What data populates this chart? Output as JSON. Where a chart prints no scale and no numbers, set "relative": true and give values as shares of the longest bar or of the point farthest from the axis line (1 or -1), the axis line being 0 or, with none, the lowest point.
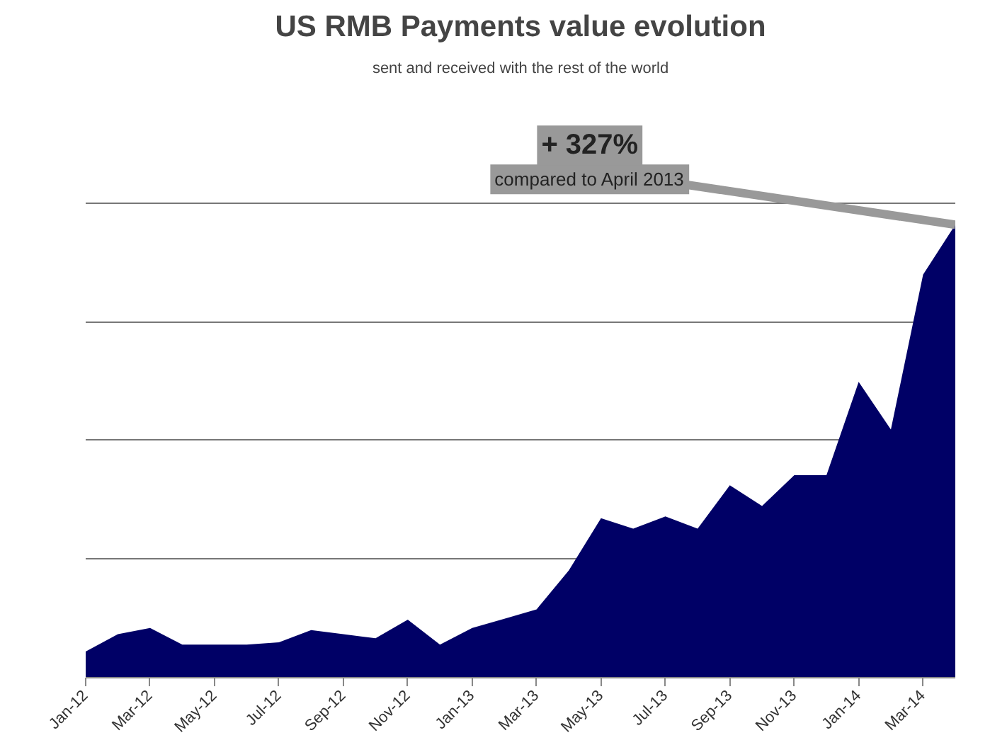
{
  "chart_data": {
    "type": "area",
    "title": "US RMB Payments value evolution",
    "subtitle": "sent and received with the rest of the world",
    "categories": [
      "Jan-12",
      null,
      "Mar-12",
      null,
      "May-12",
      null,
      "Jul-12",
      null,
      "Sep-12",
      null,
      "Nov-12",
      null,
      "Jan-13",
      null,
      "Mar-13",
      null,
      "May-13",
      null,
      "Jul-13",
      null,
      "Sep-13",
      null,
      "Nov-13",
      null,
      "Jan-14",
      null,
      "Mar-14",
      null
    ],
    "series": [
      {
        "color": "#000066",
        "values": [
          0.058,
          0.096,
          0.11,
          0.073,
          0.073,
          0.073,
          0.078,
          0.105,
          0.096,
          0.087,
          0.128,
          0.073,
          0.11,
          0.13,
          0.151,
          0.237,
          0.352,
          0.329,
          0.356,
          0.329,
          0.425,
          0.379,
          0.447,
          0.447,
          0.653,
          0.548,
          0.89,
          1
        ]
      }
    ],
    "relative": true,
    "grid": "y",
    "annotations": [
      "+ 327%",
      "compared to April 2013"
    ]
  }
}
